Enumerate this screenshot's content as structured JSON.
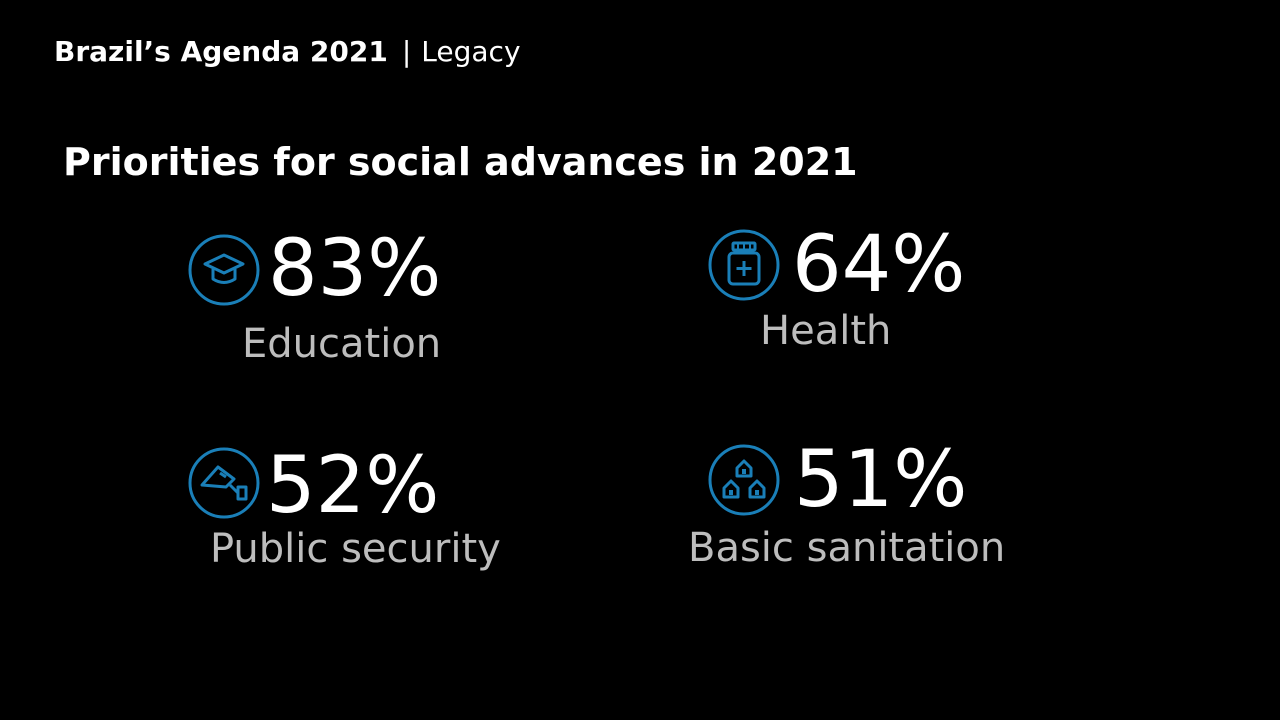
{
  "header": {
    "title": "Brazil’s Agenda 2021",
    "separator": "|",
    "subtitle": "Legacy"
  },
  "heading": "Priorities for social advances in 2021",
  "accent_color": "#1a7fb8",
  "stats": [
    {
      "value": "83%",
      "label": "Education",
      "icon": "graduation-cap-icon"
    },
    {
      "value": "64%",
      "label": "Health",
      "icon": "medicine-jar-icon"
    },
    {
      "value": "52%",
      "label": "Public security",
      "icon": "security-camera-icon"
    },
    {
      "value": "51%",
      "label": "Basic sanitation",
      "icon": "houses-icon"
    }
  ]
}
